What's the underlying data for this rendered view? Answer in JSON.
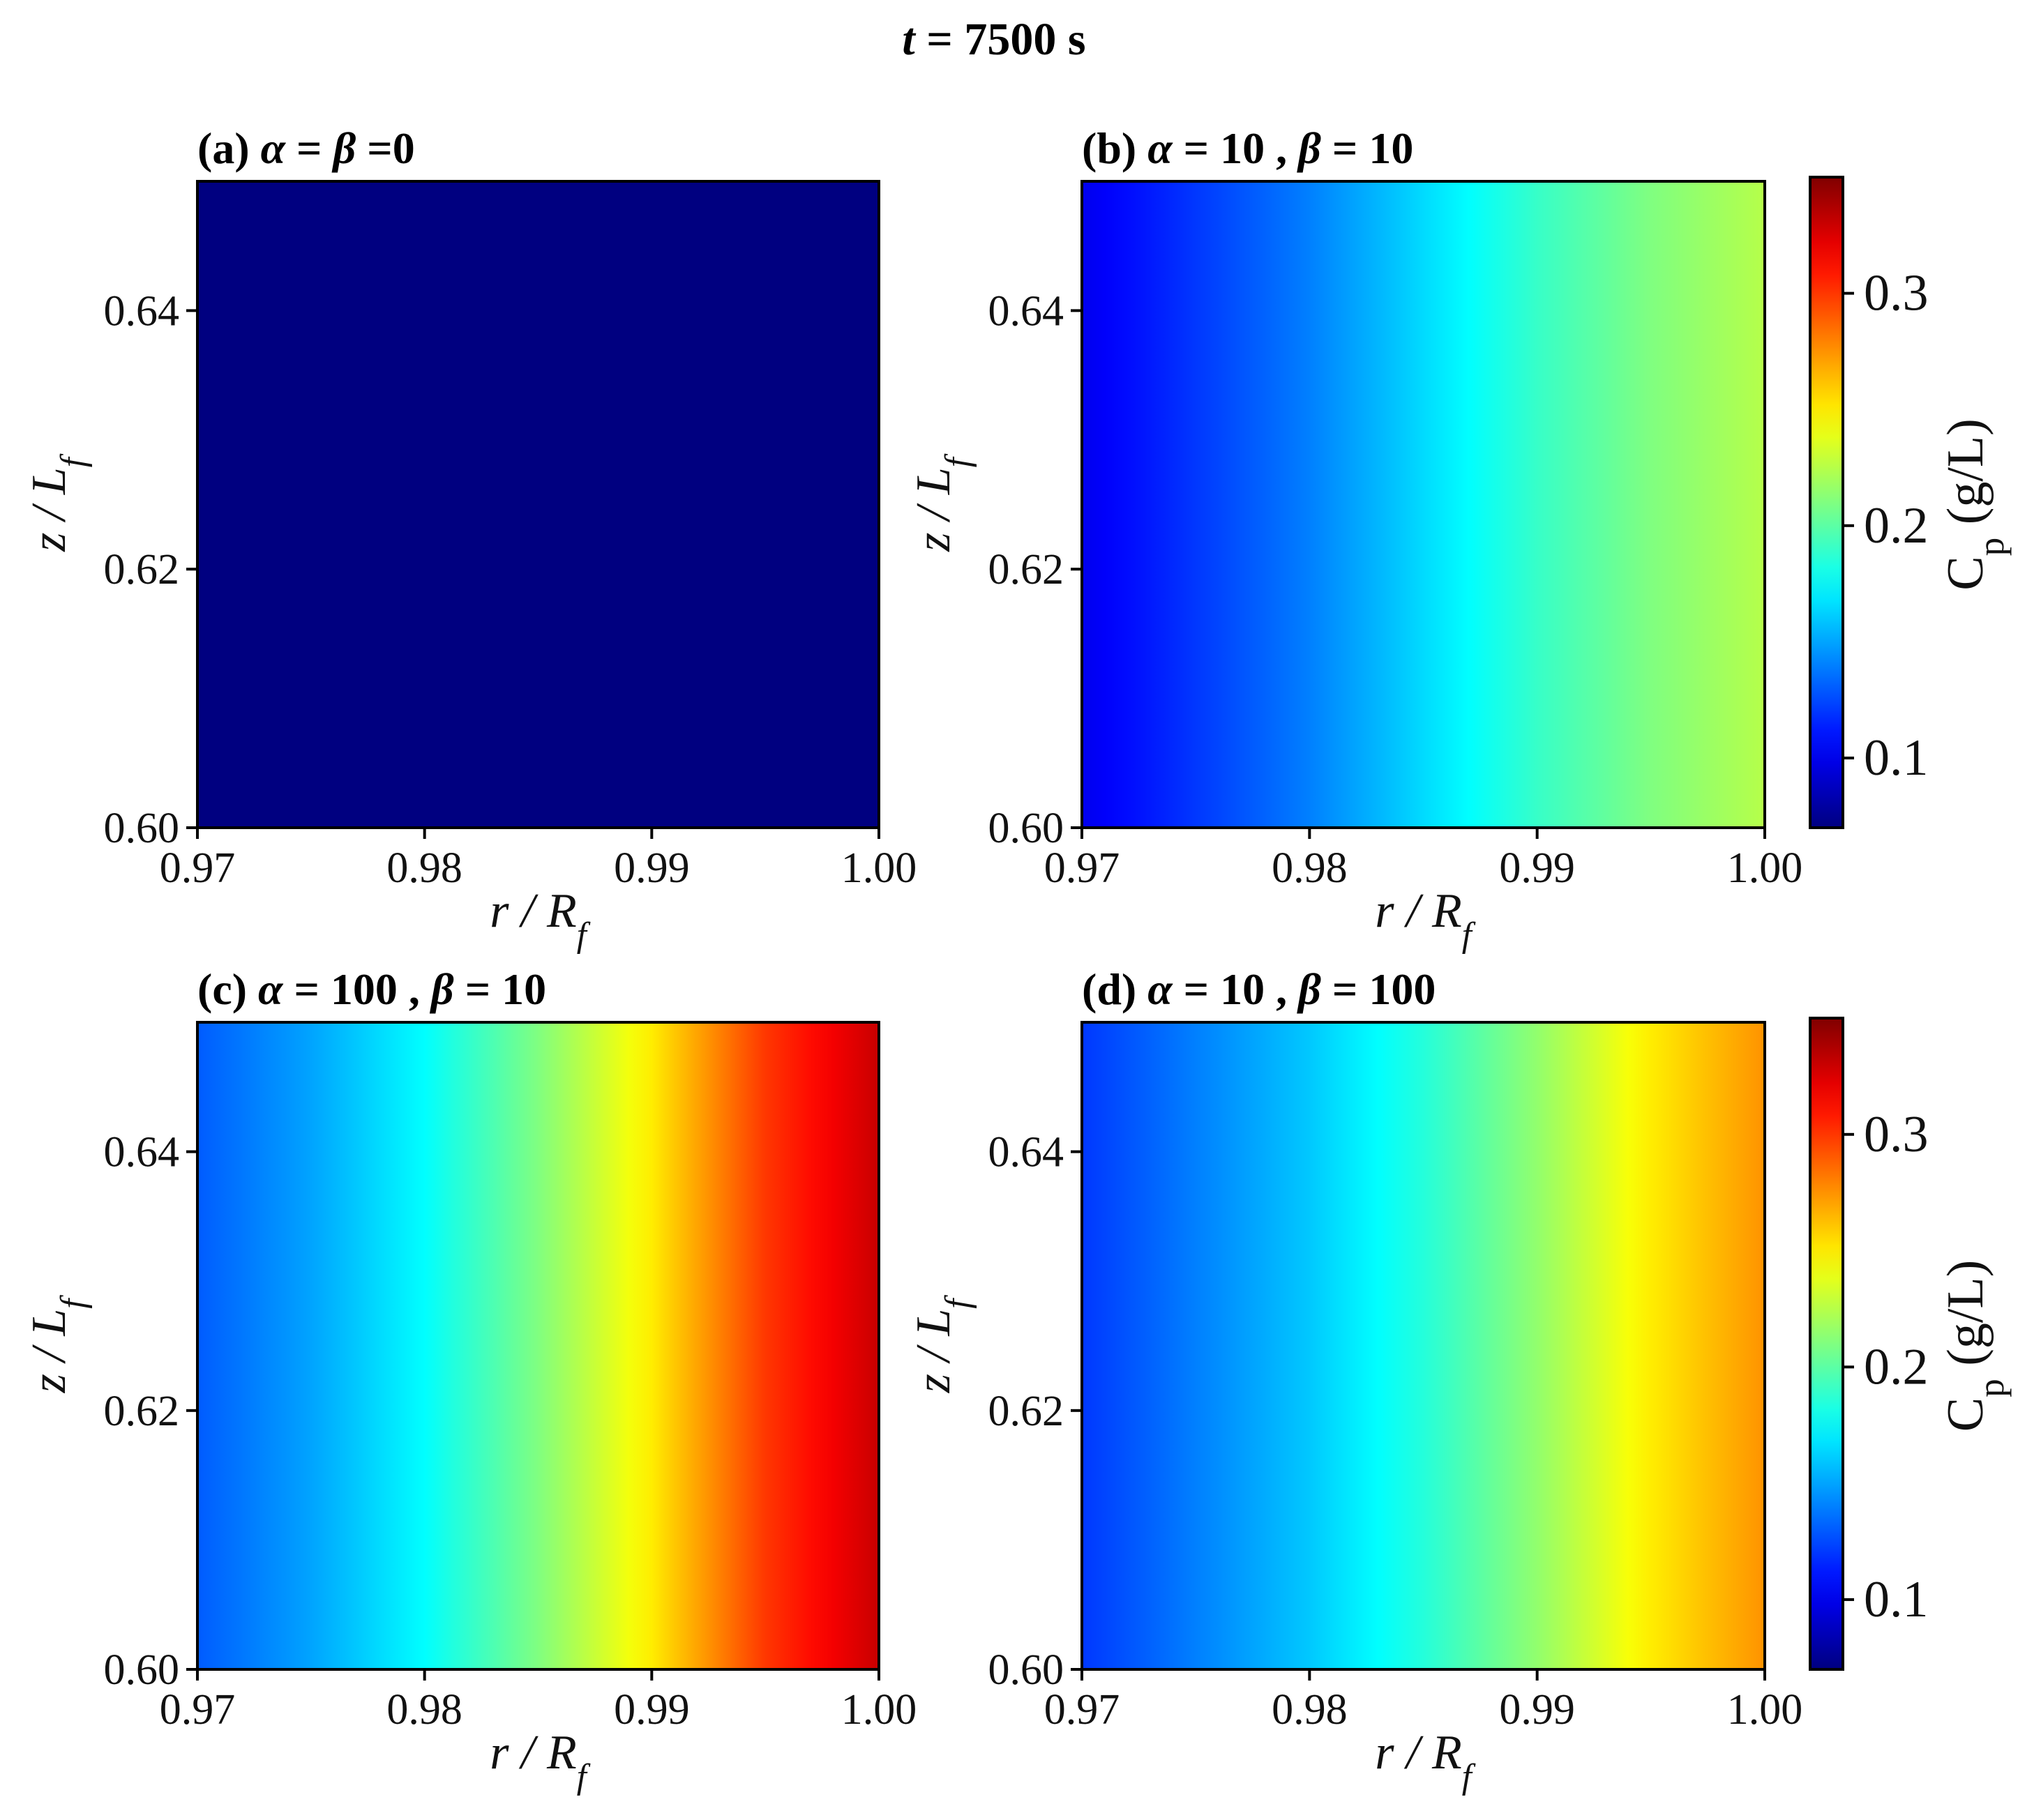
{
  "figure": {
    "title": "t = 7500 s"
  },
  "chart_data": [
    {
      "type": "heatmap",
      "id": "a",
      "title": "(a) α = β =0",
      "xlabel": "r / R_f",
      "ylabel": "z / L_f",
      "xlim": [
        0.97,
        1.0
      ],
      "ylim": [
        0.6,
        0.65
      ],
      "xticks": [
        "0.97",
        "0.98",
        "0.99",
        "1.00"
      ],
      "yticks": [
        "0.60",
        "0.62",
        "0.64"
      ],
      "x": [
        0.97,
        0.9775,
        0.985,
        0.9925,
        1.0
      ],
      "values": [
        0.07,
        0.07,
        0.07,
        0.07,
        0.07
      ],
      "colorbar": false
    },
    {
      "type": "heatmap",
      "id": "b",
      "title": "(b) α = 10 , β = 10",
      "xlabel": "r / R_f",
      "ylabel": "z / L_f",
      "xlim": [
        0.97,
        1.0
      ],
      "ylim": [
        0.6,
        0.65
      ],
      "xticks": [
        "0.97",
        "0.98",
        "0.99",
        "1.00"
      ],
      "yticks": [
        "0.60",
        "0.62",
        "0.64"
      ],
      "x": [
        0.97,
        0.975,
        0.98,
        0.985,
        0.99,
        0.995,
        1.0
      ],
      "values": [
        0.1,
        0.12,
        0.14,
        0.165,
        0.19,
        0.21,
        0.225
      ],
      "colorbar": true
    },
    {
      "type": "heatmap",
      "id": "c",
      "title": "(c) α = 100 , β = 10",
      "xlabel": "r / R_f",
      "ylabel": "z / L_f",
      "xlim": [
        0.97,
        1.0
      ],
      "ylim": [
        0.6,
        0.65
      ],
      "xticks": [
        "0.97",
        "0.98",
        "0.99",
        "1.00"
      ],
      "yticks": [
        "0.60",
        "0.62",
        "0.64"
      ],
      "x": [
        0.97,
        0.975,
        0.98,
        0.985,
        0.99,
        0.995,
        1.0
      ],
      "values": [
        0.13,
        0.15,
        0.175,
        0.21,
        0.25,
        0.3,
        0.33
      ],
      "colorbar": false
    },
    {
      "type": "heatmap",
      "id": "d",
      "title": "(d) α = 10 , β = 100",
      "xlabel": "r / R_f",
      "ylabel": "z / L_f",
      "xlim": [
        0.97,
        1.0
      ],
      "ylim": [
        0.6,
        0.65
      ],
      "xticks": [
        "0.97",
        "0.98",
        "0.99",
        "1.00"
      ],
      "yticks": [
        "0.60",
        "0.62",
        "0.64"
      ],
      "x": [
        0.97,
        0.975,
        0.98,
        0.985,
        0.99,
        0.995,
        1.0
      ],
      "values": [
        0.12,
        0.14,
        0.16,
        0.185,
        0.215,
        0.25,
        0.275
      ],
      "colorbar": true
    }
  ],
  "colorbar": {
    "label": "C_p (g/L)",
    "range": [
      0.07,
      0.35
    ],
    "ticks": [
      "0.1",
      "0.2",
      "0.3"
    ],
    "tick_values": [
      0.1,
      0.2,
      0.3
    ],
    "colormap": "jet"
  }
}
